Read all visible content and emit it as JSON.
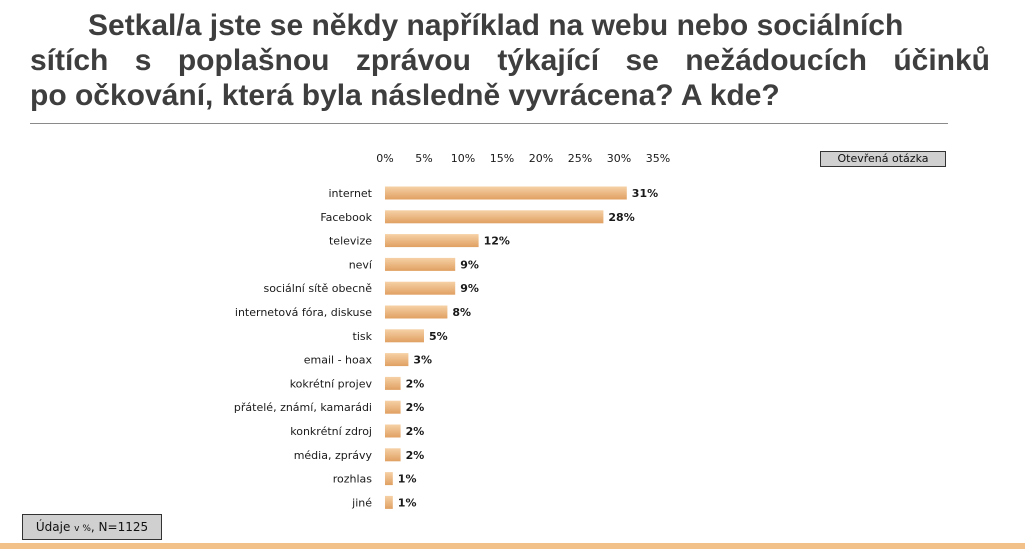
{
  "title": {
    "line1": "Setkal/a jste se někdy například na webu nebo sociálních",
    "line2": "sítích s poplašnou zprávou týkající se nežádoucích účinků",
    "line3": "po očkování, která byla následně vyvrácena? A kde?"
  },
  "badge": "Otevřená otázka",
  "footer": {
    "prefix": "Údaje ",
    "small": "v %",
    "suffix": ", N=1125"
  },
  "colors": {
    "bar_top": "#f6d1a6",
    "bar_bottom": "#e0a062",
    "accent_bar": "#f2c089"
  },
  "chart_data": {
    "type": "bar",
    "orientation": "horizontal",
    "categories": [
      "internet",
      "Facebook",
      "televize",
      "neví",
      "sociální sítě obecně",
      "internetová fóra, diskuse",
      "tisk",
      "email - hoax",
      "kokrétní projev",
      "přátelé, známí, kamarádi",
      "konkrétní zdroj",
      "média, zprávy",
      "rozhlas",
      "jiné"
    ],
    "values": [
      31,
      28,
      12,
      9,
      9,
      8,
      5,
      3,
      2,
      2,
      2,
      2,
      1,
      1
    ],
    "value_labels": [
      "31%",
      "28%",
      "12%",
      "9%",
      "9%",
      "8%",
      "5%",
      "3%",
      "2%",
      "2%",
      "2%",
      "2%",
      "1%",
      "1%"
    ],
    "ticks": [
      0,
      5,
      10,
      15,
      20,
      25,
      30,
      35
    ],
    "tick_labels": [
      "0%",
      "5%",
      "10%",
      "15%",
      "20%",
      "25%",
      "30%",
      "35%"
    ],
    "xlim": [
      0,
      35
    ],
    "xaxis_position": "top",
    "grid": false,
    "legend": "none"
  }
}
